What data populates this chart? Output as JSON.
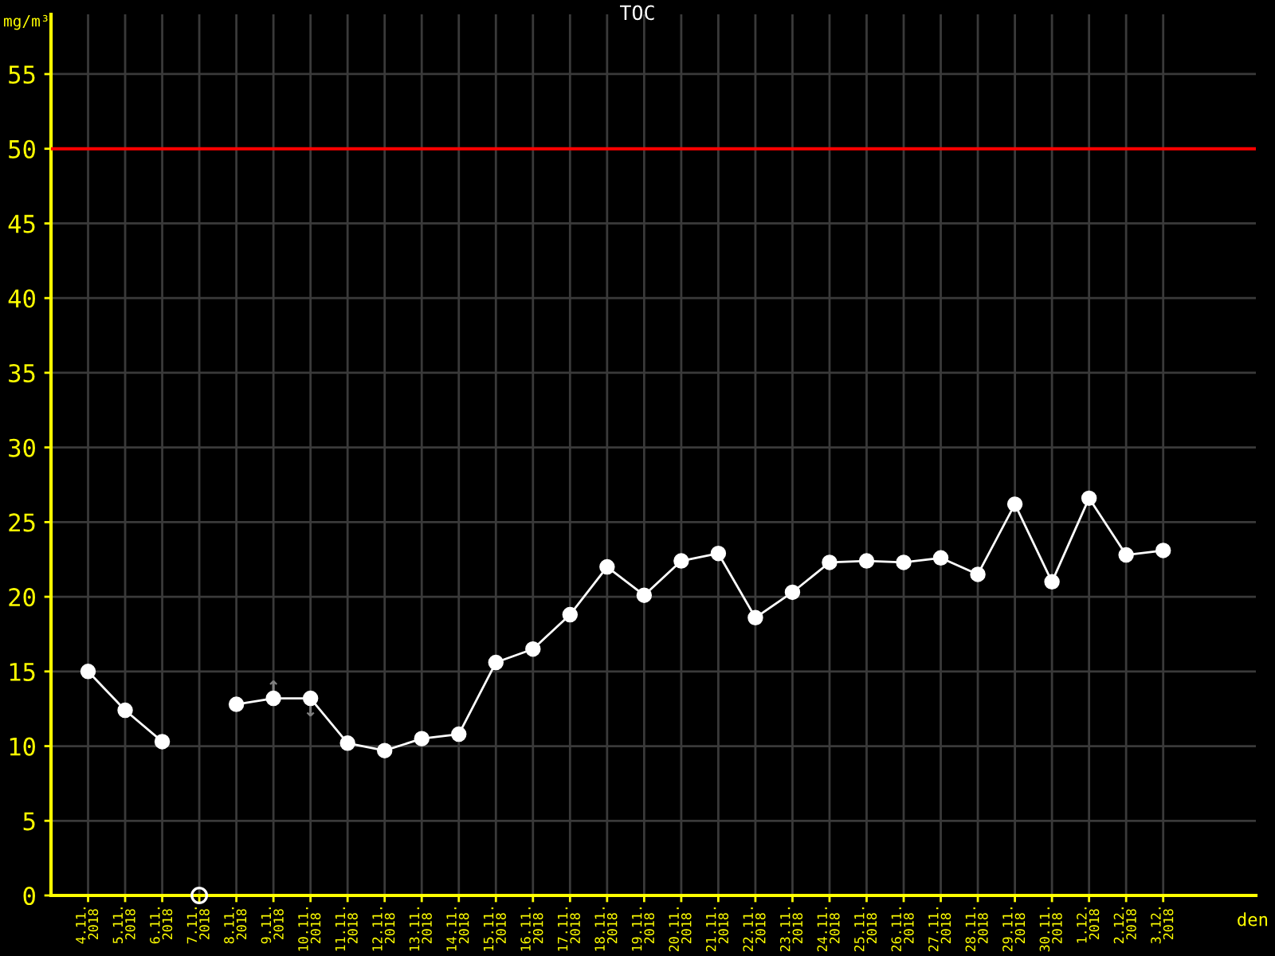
{
  "chart_data": {
    "type": "line",
    "title": "TOC",
    "xlabel": "den",
    "ylabel": "mg/m³",
    "categories": [
      "4.11.\n2018",
      "5.11.\n2018",
      "6.11.\n2018",
      "7.11.\n2018",
      "8.11.\n2018",
      "9.11.\n2018",
      "10.11.\n2018",
      "11.11.\n2018",
      "12.11.\n2018",
      "13.11.\n2018",
      "14.11.\n2018",
      "15.11.\n2018",
      "16.11.\n2018",
      "17.11.\n2018",
      "18.11.\n2018",
      "19.11.\n2018",
      "20.11.\n2018",
      "21.11.\n2018",
      "22.11.\n2018",
      "23.11.\n2018",
      "24.11.\n2018",
      "25.11.\n2018",
      "26.11.\n2018",
      "27.11.\n2018",
      "28.11.\n2018",
      "29.11.\n2018",
      "30.11.\n2018",
      "1.12.\n2018",
      "2.12.\n2018",
      "3.12.\n2018"
    ],
    "series": [
      {
        "type": "line",
        "color": "#ffffff",
        "values": [
          15.0,
          12.4,
          10.3,
          null,
          12.8,
          13.2,
          13.2,
          10.2,
          9.7,
          10.5,
          10.8,
          15.6,
          16.5,
          18.8,
          22.0,
          20.1,
          22.4,
          22.9,
          18.6,
          20.3,
          22.3,
          22.4,
          22.3,
          22.6,
          21.5,
          26.2,
          21.0,
          26.6,
          22.8,
          23.1
        ]
      },
      {
        "type": "scatter",
        "color": "#ffffff",
        "values": [
          null,
          null,
          null,
          0,
          null,
          null,
          null,
          null,
          null,
          null,
          null,
          null,
          null,
          null,
          null,
          null,
          null,
          null,
          null,
          null,
          null,
          null,
          null,
          null,
          null,
          null,
          null,
          null,
          null,
          null
        ]
      }
    ],
    "ylim": [
      0,
      59
    ],
    "yticks": [
      0,
      5,
      10,
      15,
      20,
      25,
      30,
      35,
      40,
      45,
      50,
      55
    ],
    "ref_lines": [
      {
        "axis": "y",
        "value": 50,
        "color": "#ff0000"
      }
    ],
    "annotations": [
      {
        "text": "↑",
        "x": "9.11.\n2018",
        "y": 14.0
      },
      {
        "text": "↓",
        "x": "10.11.\n2018",
        "y": 12.4
      }
    ],
    "grid": true,
    "marker": "circle",
    "line_style": "solid"
  }
}
